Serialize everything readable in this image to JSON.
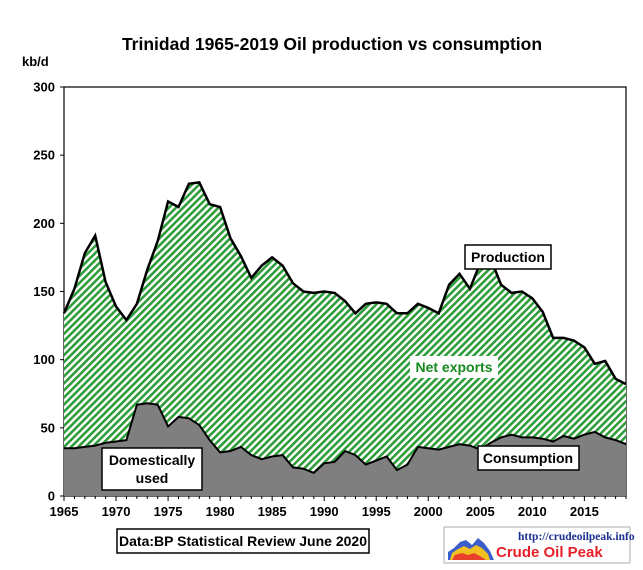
{
  "chart_data": {
    "type": "area",
    "title": "Trinidad  1965-2019 Oil production vs consumption",
    "ylabel": "kb/d",
    "xlabel": "",
    "ylim": [
      0,
      300
    ],
    "xlim": [
      1965,
      2019
    ],
    "yticks": [
      0,
      50,
      100,
      150,
      200,
      250,
      300
    ],
    "xticks": [
      1965,
      1970,
      1975,
      1980,
      1985,
      1990,
      1995,
      2000,
      2005,
      2010,
      2015
    ],
    "grid": false,
    "x": [
      1965,
      1966,
      1967,
      1968,
      1969,
      1970,
      1971,
      1972,
      1973,
      1974,
      1975,
      1976,
      1977,
      1978,
      1979,
      1980,
      1981,
      1982,
      1983,
      1984,
      1985,
      1986,
      1987,
      1988,
      1989,
      1990,
      1991,
      1992,
      1993,
      1994,
      1995,
      1996,
      1997,
      1998,
      1999,
      2000,
      2001,
      2002,
      2003,
      2004,
      2005,
      2006,
      2007,
      2008,
      2009,
      2010,
      2011,
      2012,
      2013,
      2014,
      2015,
      2016,
      2017,
      2018,
      2019
    ],
    "series": [
      {
        "name": "Production",
        "values": [
          134,
          152,
          178,
          191,
          157,
          139,
          129,
          141,
          166,
          187,
          216,
          212,
          229,
          230,
          214,
          212,
          189,
          176,
          160,
          169,
          175,
          169,
          156,
          150,
          149,
          150,
          149,
          143,
          134,
          141,
          142,
          141,
          134,
          134,
          141,
          138,
          134,
          155,
          163,
          152,
          171,
          174,
          155,
          149,
          150,
          145,
          135,
          116,
          116,
          114,
          109,
          97,
          99,
          86,
          82
        ]
      },
      {
        "name": "Consumption",
        "values": [
          35,
          35,
          36,
          37,
          39,
          40,
          41,
          67,
          68,
          67,
          51,
          58,
          57,
          52,
          41,
          32,
          33,
          36,
          30,
          27,
          29,
          30,
          21,
          20,
          17,
          24,
          25,
          33,
          30,
          23,
          26,
          29,
          19,
          23,
          36,
          35,
          34,
          36,
          38,
          37,
          34,
          39,
          43,
          45,
          43,
          43,
          42,
          40,
          44,
          42,
          45,
          47,
          43,
          41,
          38
        ]
      }
    ],
    "annotations": {
      "production": "Production",
      "net_exports": "Net exports",
      "consumption": "Consumption",
      "domestic_line1": "Domestically",
      "domestic_line2": "used",
      "source": "Data:BP Statistical Review June 2020",
      "url": "http://crudeoilpeak.info",
      "brand": "Crude Oil Peak"
    },
    "colors": {
      "exports_hatch": "#2e9d3a",
      "consumption_fill": "#7f7f7f",
      "line": "#000000",
      "brand_text": "#e8202a",
      "url_text": "#1a2f8f"
    }
  }
}
